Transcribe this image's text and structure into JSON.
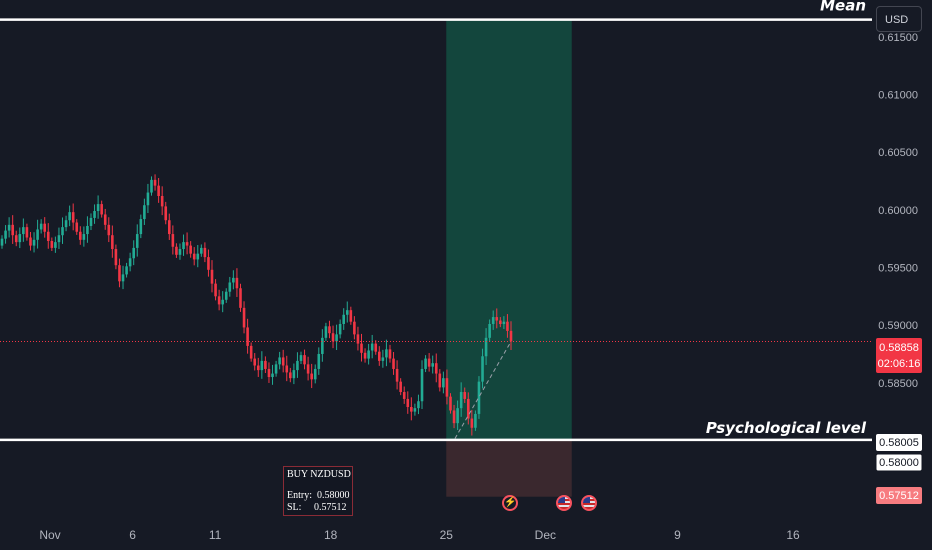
{
  "currency_button": "USD",
  "horizontal_lines": [
    {
      "label": "Mean",
      "price": 0.6165
    },
    {
      "label": "Psychological level",
      "price": 0.58005
    }
  ],
  "price_badges": {
    "current_price": "0.58858",
    "countdown": "02:06:16",
    "psych_price": "0.58005",
    "entry_price": "0.58000",
    "stop_price": "0.57512"
  },
  "trade_note": {
    "title": "BUY NZDUSD",
    "entry_label": "Entry:",
    "entry_value": "0.58000",
    "sl_label": "SL:",
    "sl_value": "0.57512"
  },
  "colors": {
    "background": "#161a25",
    "bull": "#22ab94",
    "bear": "#f23645",
    "profit_zone": "#13463d",
    "loss_zone": "#3a282e",
    "current_price": "#f23645",
    "stop_badge": "#f77c80"
  },
  "icons": [
    "lightning-icon",
    "us-flag-icon",
    "us-flag-icon"
  ],
  "chart_data": {
    "type": "candlestick",
    "symbol": "NZDUSD",
    "ylim": [
      0.5731,
      0.6182
    ],
    "y_ticks": [
      "0.61500",
      "0.61000",
      "0.60500",
      "0.60000",
      "0.59500",
      "0.59000",
      "0.58500",
      "0.58000"
    ],
    "x_ticks": [
      "Nov",
      "6",
      "11",
      "18",
      "25",
      "Dec",
      "9",
      "16"
    ],
    "x_tick_days": [
      1,
      6,
      11,
      18,
      25,
      31,
      39,
      46
    ],
    "x_axis": "calendar days, day 1 = Nov 1",
    "grid": false,
    "position": {
      "side": "long",
      "entry": 0.58,
      "stop": 0.57512,
      "target": 0.6165,
      "start_day": 25.0,
      "end_day": 32.6
    },
    "current_price": 0.58858,
    "closes": [
      0.5975,
      0.5982,
      0.5987,
      0.5978,
      0.5972,
      0.5979,
      0.5985,
      0.5976,
      0.5969,
      0.5974,
      0.5983,
      0.5988,
      0.5981,
      0.5973,
      0.5967,
      0.5972,
      0.5978,
      0.5985,
      0.5991,
      0.5998,
      0.5989,
      0.5981,
      0.5974,
      0.5979,
      0.5986,
      0.5993,
      0.5999,
      0.6005,
      0.5996,
      0.5987,
      0.5978,
      0.5966,
      0.5952,
      0.5938,
      0.5944,
      0.5951,
      0.5958,
      0.5967,
      0.5979,
      0.5992,
      0.6004,
      0.6015,
      0.6026,
      0.6021,
      0.6012,
      0.6003,
      0.5991,
      0.5979,
      0.5968,
      0.5961,
      0.5966,
      0.5972,
      0.5969,
      0.5962,
      0.5957,
      0.5962,
      0.5967,
      0.5959,
      0.5948,
      0.5936,
      0.5925,
      0.5918,
      0.5922,
      0.5929,
      0.5937,
      0.5941,
      0.5932,
      0.5915,
      0.5898,
      0.5882,
      0.5871,
      0.5865,
      0.5861,
      0.5869,
      0.5862,
      0.5855,
      0.5858,
      0.5866,
      0.5872,
      0.5865,
      0.5859,
      0.5854,
      0.5861,
      0.5869,
      0.5874,
      0.5866,
      0.5858,
      0.5853,
      0.5862,
      0.5875,
      0.5889,
      0.5899,
      0.5893,
      0.5886,
      0.5892,
      0.5901,
      0.5909,
      0.5913,
      0.5903,
      0.5892,
      0.5884,
      0.5876,
      0.5871,
      0.5878,
      0.5884,
      0.5877,
      0.5869,
      0.5872,
      0.5879,
      0.5871,
      0.5862,
      0.5851,
      0.5842,
      0.5836,
      0.5829,
      0.5825,
      0.5828,
      0.5834,
      0.5862,
      0.5871,
      0.5864,
      0.5867,
      0.5858,
      0.5846,
      0.5854,
      0.5838,
      0.5826,
      0.5815,
      0.5828,
      0.5842,
      0.5836,
      0.5819,
      0.5811,
      0.5823,
      0.5851,
      0.5873,
      0.5889,
      0.5901,
      0.5907,
      0.5904,
      0.5901,
      0.5903,
      0.5895,
      0.5886
    ]
  }
}
